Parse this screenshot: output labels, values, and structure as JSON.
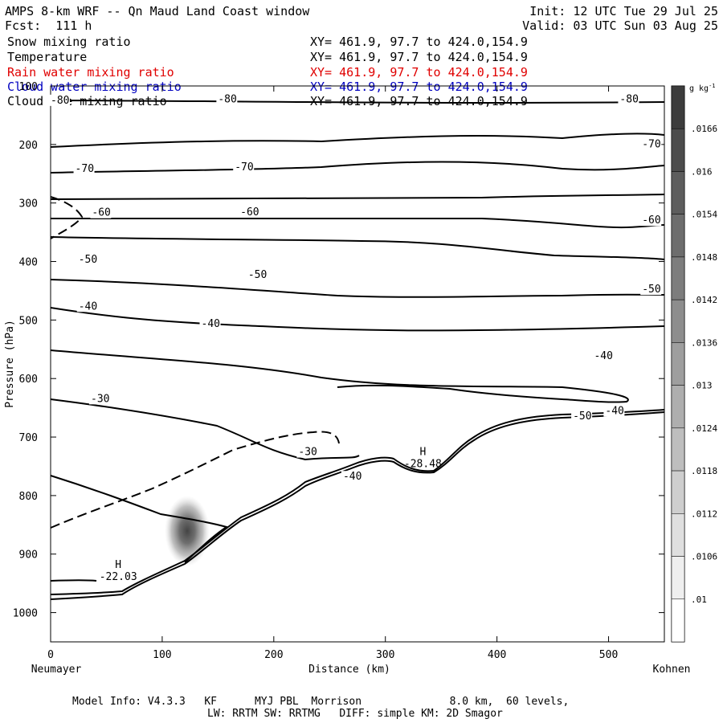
{
  "header": {
    "title": "AMPS 8-km WRF -- Qn Maud Land Coast window",
    "init": "Init: 12 UTC Tue 29 Jul 25",
    "fcst": "Fcst:  111 h",
    "valid": "Valid: 03 UTC Sun 03 Aug 25"
  },
  "fields": [
    {
      "name": "Snow mixing ratio",
      "xy": "XY= 461.9, 97.7 to 424.0,154.9",
      "color": "#000000"
    },
    {
      "name": "Temperature",
      "xy": "XY= 461.9, 97.7 to 424.0,154.9",
      "color": "#000000"
    },
    {
      "name": "Rain water mixing ratio",
      "xy": "XY= 461.9, 97.7 to 424.0,154.9",
      "color": "#e00000"
    },
    {
      "name": "Cloud water mixing ratio",
      "xy": "XY= 461.9, 97.7 to 424.0,154.9",
      "color": "#0000c0"
    },
    {
      "name": "Cloud ice mixing ratio",
      "xy": "XY= 461.9, 97.7 to 424.0,154.9",
      "color": "#000000"
    }
  ],
  "footer": {
    "line1": "Model Info: V4.3.3   KF      MYJ PBL  Morrison              8.0 km,  60 levels,",
    "line2": "LW: RRTM SW: RRTMG   DIFF: simple KM: 2D Smagor"
  },
  "chart_data": {
    "type": "contour",
    "xlabel": "Distance (km)",
    "ylabel": "Pressure (hPa)",
    "xlim": [
      0,
      550
    ],
    "ylim": [
      1050,
      100
    ],
    "x_ticks": [
      0,
      100,
      200,
      300,
      400,
      500
    ],
    "y_ticks": [
      100,
      200,
      300,
      400,
      500,
      600,
      700,
      800,
      900,
      1000
    ],
    "left_location": "Neumayer",
    "right_location": "Kohnen",
    "colorbar": {
      "unit": "g kg",
      "unit_exp": "-1",
      "labels": [
        ".0166",
        ".016",
        ".0154",
        ".0148",
        ".0142",
        ".0136",
        ".013",
        ".0124",
        ".0118",
        ".0112",
        ".0106",
        ".01"
      ]
    },
    "contour_labels": [
      {
        "text": "-80",
        "x": 0,
        "p": 130
      },
      {
        "text": "-80",
        "x": 150,
        "p": 128
      },
      {
        "text": "-80",
        "x": 510,
        "p": 128
      },
      {
        "text": "-70",
        "x": 22,
        "p": 247
      },
      {
        "text": "-70",
        "x": 165,
        "p": 244
      },
      {
        "text": "-70",
        "x": 530,
        "p": 205
      },
      {
        "text": "-60",
        "x": 37,
        "p": 322
      },
      {
        "text": "-60",
        "x": 170,
        "p": 321
      },
      {
        "text": "-60",
        "x": 530,
        "p": 335
      },
      {
        "text": "-50",
        "x": 25,
        "p": 402
      },
      {
        "text": "-50",
        "x": 177,
        "p": 428
      },
      {
        "text": "-50",
        "x": 530,
        "p": 453
      },
      {
        "text": "-40",
        "x": 25,
        "p": 482
      },
      {
        "text": "-40",
        "x": 135,
        "p": 512
      },
      {
        "text": "-40",
        "x": 487,
        "p": 567
      },
      {
        "text": "-30",
        "x": 36,
        "p": 640
      },
      {
        "text": "-30",
        "x": 222,
        "p": 731
      },
      {
        "text": "-40",
        "x": 262,
        "p": 773
      },
      {
        "text": "-50",
        "x": 468,
        "p": 670
      },
      {
        "text": "-40",
        "x": 497,
        "p": 661
      }
    ],
    "extrema": [
      {
        "symbol": "H",
        "value": "-22.03",
        "x": 57,
        "p": 940
      },
      {
        "symbol": "H",
        "value": "-28.48",
        "x": 330,
        "p": 747
      }
    ]
  }
}
